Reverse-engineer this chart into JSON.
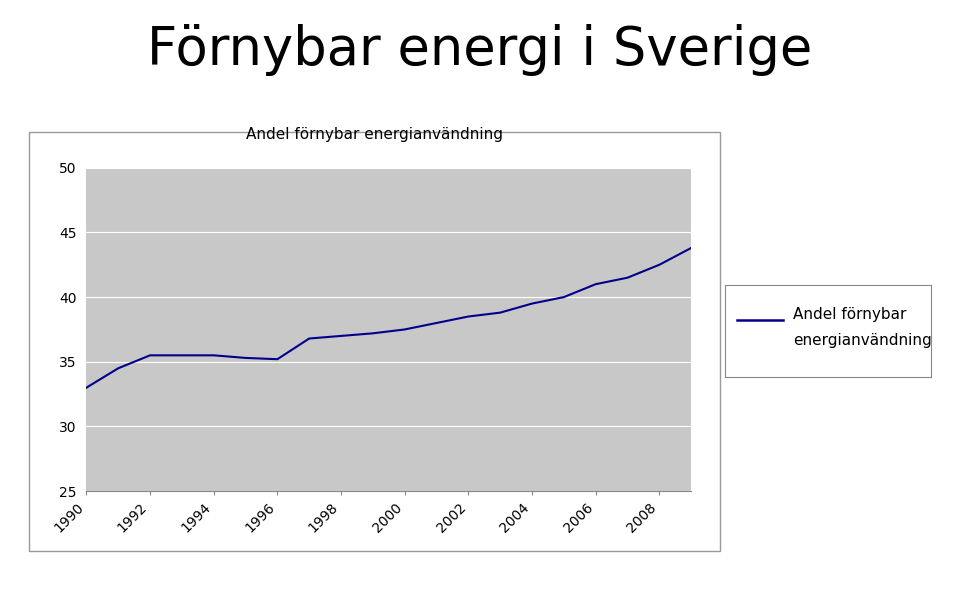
{
  "title": "Förnybar energi i Sverige",
  "chart_title": "Andel förnybar energianvändning",
  "legend_label_line1": "Andel förnybar",
  "legend_label_line2": "energianvändning",
  "years": [
    1990,
    1991,
    1992,
    1993,
    1994,
    1995,
    1996,
    1997,
    1998,
    1999,
    2000,
    2001,
    2002,
    2003,
    2004,
    2005,
    2006,
    2007,
    2008,
    2009
  ],
  "values": [
    33.0,
    34.5,
    35.5,
    35.5,
    35.5,
    35.3,
    35.2,
    36.8,
    37.0,
    37.2,
    37.5,
    38.0,
    38.5,
    38.8,
    39.5,
    40.0,
    41.0,
    41.5,
    42.5,
    43.8
  ],
  "ylim": [
    25,
    50
  ],
  "yticks": [
    25,
    30,
    35,
    40,
    45,
    50
  ],
  "xticks": [
    1990,
    1992,
    1994,
    1996,
    1998,
    2000,
    2002,
    2004,
    2006,
    2008
  ],
  "xlim_min": 1990,
  "xlim_max": 2009,
  "line_color": "#00008B",
  "plot_bg_color": "#C8C8C8",
  "fig_bg_color": "#FFFFFF",
  "outer_box_color": "#999999",
  "title_fontsize": 38,
  "chart_title_fontsize": 11,
  "tick_fontsize": 10,
  "legend_fontsize": 11
}
